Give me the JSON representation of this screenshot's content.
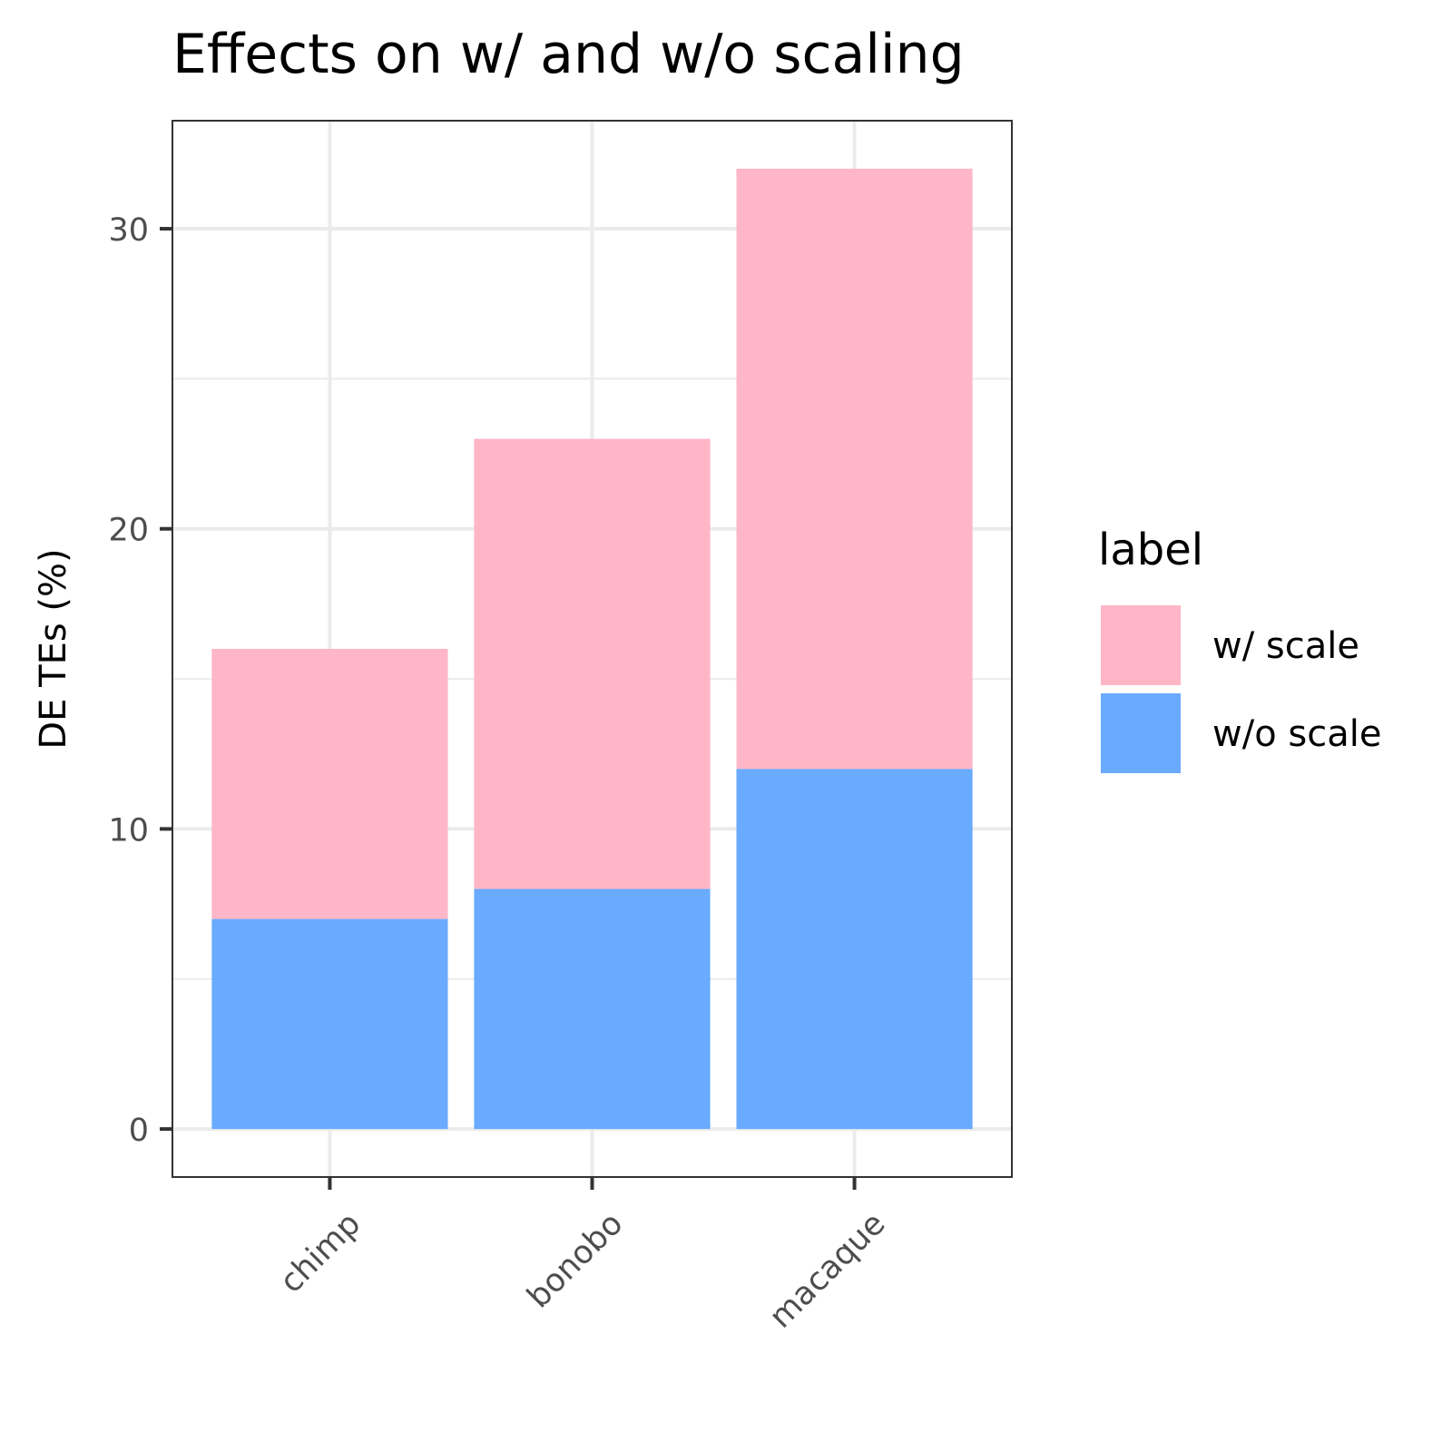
{
  "chart_data": {
    "type": "bar",
    "stacked": true,
    "title": "Effects on w/ and w/o scaling",
    "xlabel": "",
    "ylabel": "DE TEs (%)",
    "categories": [
      "chimp",
      "bonobo",
      "macaque"
    ],
    "series": [
      {
        "name": "w/o scale",
        "color": "#6aaaff",
        "values": [
          7,
          8,
          12
        ]
      },
      {
        "name": "w/ scale",
        "color": "#ffb6c6",
        "values": [
          9,
          15,
          20
        ]
      }
    ],
    "ylim": [
      -1.6,
      33.6
    ],
    "yticks": [
      "0",
      "10",
      "20",
      "30"
    ],
    "grid": true,
    "legend": {
      "title": "label",
      "position": "right",
      "entries": [
        "w/ scale",
        "w/o scale"
      ]
    }
  }
}
